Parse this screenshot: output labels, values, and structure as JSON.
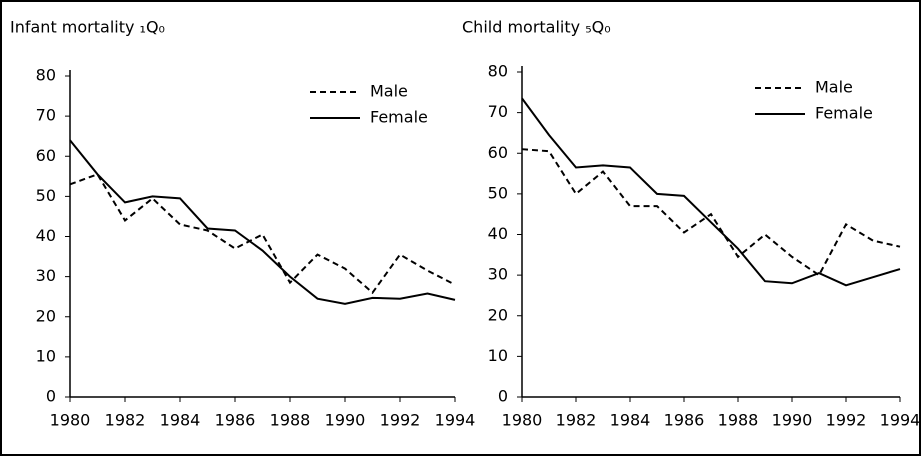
{
  "chart_data": [
    {
      "type": "line",
      "title": "Infant mortality ₁Q₀",
      "x": [
        1980,
        1981,
        1982,
        1983,
        1984,
        1985,
        1986,
        1987,
        1988,
        1989,
        1990,
        1991,
        1992,
        1993,
        1994
      ],
      "series": [
        {
          "name": "Male",
          "color": "#000000",
          "linestyle": "dashed",
          "values": [
            53,
            55.5,
            44,
            49.5,
            43,
            41.5,
            37,
            40.5,
            28.5,
            35.5,
            32,
            26,
            35.5,
            31.5,
            28
          ]
        },
        {
          "name": "Female",
          "color": "#000000",
          "linestyle": "solid",
          "values": [
            64,
            55.5,
            48.5,
            50,
            49.5,
            42,
            41.5,
            36.5,
            30,
            24.5,
            23.2,
            24.7,
            24.5,
            25.8,
            24.2
          ]
        }
      ],
      "xlim": [
        1980,
        1994
      ],
      "xticks": [
        1980,
        1982,
        1984,
        1986,
        1988,
        1990,
        1992,
        1994
      ],
      "ylim": [
        0,
        80
      ],
      "yticks": [
        0,
        10,
        20,
        30,
        40,
        50,
        60,
        70,
        80
      ],
      "legend": "upper right"
    },
    {
      "type": "line",
      "title": "Child mortality ₅Q₀",
      "x": [
        1980,
        1981,
        1982,
        1983,
        1984,
        1985,
        1986,
        1987,
        1988,
        1989,
        1990,
        1991,
        1992,
        1993,
        1994
      ],
      "series": [
        {
          "name": "Male",
          "color": "#000000",
          "linestyle": "dashed",
          "values": [
            61,
            60.5,
            50,
            55.5,
            47,
            47,
            40.5,
            45,
            34.5,
            40,
            34.5,
            30,
            42.5,
            38.5,
            37
          ]
        },
        {
          "name": "Female",
          "color": "#000000",
          "linestyle": "solid",
          "values": [
            73.5,
            64.5,
            56.5,
            57,
            56.5,
            50,
            49.5,
            43,
            36.5,
            28.5,
            28,
            30.5,
            27.5,
            29.5,
            31.5
          ]
        }
      ],
      "xlim": [
        1980,
        1994
      ],
      "xticks": [
        1980,
        1982,
        1984,
        1986,
        1988,
        1990,
        1992,
        1994
      ],
      "ylim": [
        0,
        80
      ],
      "yticks": [
        0,
        10,
        20,
        30,
        40,
        50,
        60,
        70,
        80
      ],
      "legend": "upper right"
    }
  ]
}
